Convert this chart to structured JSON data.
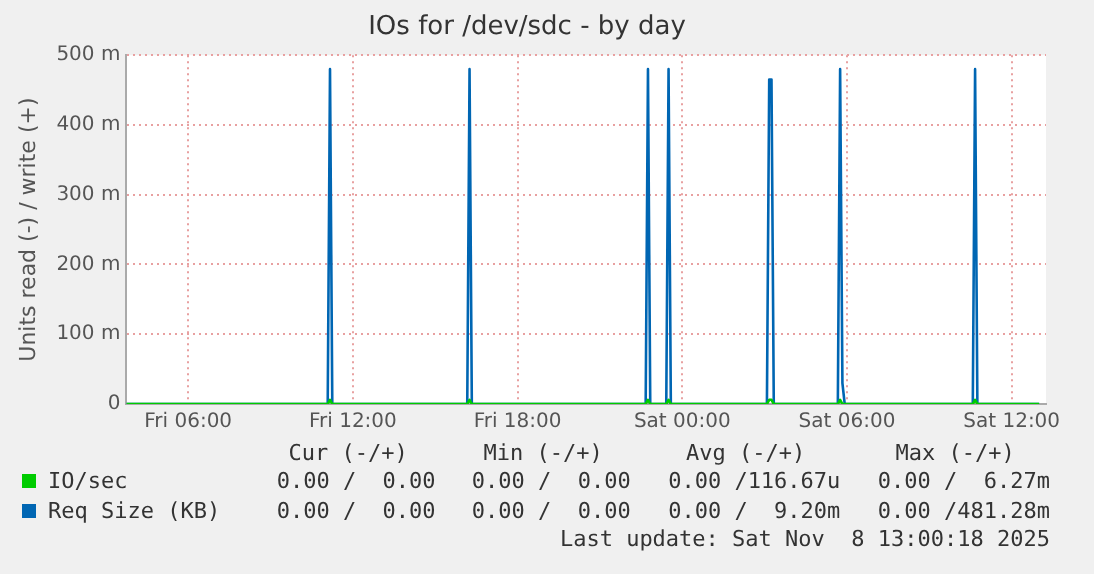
{
  "chart_data": {
    "type": "line",
    "title": "IOs for /dev/sdc - by day",
    "ylabel": "Units read (-) / write (+)",
    "xlim": [
      "2025-11-07T03:45",
      "2025-11-08T13:15"
    ],
    "xticks": [
      {
        "value": "2025-11-07T06:00",
        "label": "Fri 06:00"
      },
      {
        "value": "2025-11-07T12:00",
        "label": "Fri 12:00"
      },
      {
        "value": "2025-11-07T18:00",
        "label": "Fri 18:00"
      },
      {
        "value": "2025-11-08T00:00",
        "label": "Sat 00:00"
      },
      {
        "value": "2025-11-08T06:00",
        "label": "Sat 06:00"
      },
      {
        "value": "2025-11-08T12:00",
        "label": "Sat 12:00"
      }
    ],
    "ylim": [
      0,
      500
    ],
    "yticks": [
      0,
      {
        "value": 100,
        "label": "100 m"
      },
      {
        "value": 200,
        "label": "200 m"
      },
      {
        "value": 300,
        "label": "300 m"
      },
      {
        "value": 400,
        "label": "400 m"
      },
      {
        "value": 500,
        "label": "500 m"
      }
    ],
    "series": [
      {
        "name": "IO/sec",
        "color": "#00cc00",
        "x": [
          "2025-11-07T03:45",
          "2025-11-07T11:05",
          "2025-11-07T11:10",
          "2025-11-07T11:15",
          "2025-11-07T16:10",
          "2025-11-07T16:15",
          "2025-11-07T16:20",
          "2025-11-07T22:40",
          "2025-11-07T22:45",
          "2025-11-07T22:50",
          "2025-11-07T23:25",
          "2025-11-07T23:30",
          "2025-11-07T23:35",
          "2025-11-08T03:05",
          "2025-11-08T03:10",
          "2025-11-08T03:15",
          "2025-11-08T03:20",
          "2025-11-08T05:40",
          "2025-11-08T05:45",
          "2025-11-08T05:50",
          "2025-11-08T10:35",
          "2025-11-08T10:40",
          "2025-11-08T10:45",
          "2025-11-08T13:00"
        ],
        "values": [
          0,
          0,
          6,
          0,
          0,
          6,
          0,
          0,
          6,
          0,
          0,
          6,
          0,
          0,
          6,
          6,
          0,
          0,
          6,
          0,
          0,
          6,
          0,
          0
        ]
      },
      {
        "name": "Req Size (KB)",
        "color": "#0066b3",
        "x": [
          "2025-11-07T03:45",
          "2025-11-07T11:05",
          "2025-11-07T11:10",
          "2025-11-07T11:15",
          "2025-11-07T16:10",
          "2025-11-07T16:15",
          "2025-11-07T16:20",
          "2025-11-07T22:40",
          "2025-11-07T22:45",
          "2025-11-07T22:50",
          "2025-11-07T23:25",
          "2025-11-07T23:30",
          "2025-11-07T23:35",
          "2025-11-08T03:05",
          "2025-11-08T03:10",
          "2025-11-08T03:15",
          "2025-11-08T03:20",
          "2025-11-08T05:40",
          "2025-11-08T05:45",
          "2025-11-08T05:50",
          "2025-11-08T05:55",
          "2025-11-08T10:35",
          "2025-11-08T10:40",
          "2025-11-08T10:45",
          "2025-11-08T13:00"
        ],
        "values": [
          0,
          0,
          480,
          0,
          0,
          480,
          0,
          0,
          480,
          0,
          0,
          480,
          0,
          0,
          465,
          465,
          0,
          0,
          480,
          30,
          0,
          0,
          480,
          0,
          0
        ]
      }
    ],
    "grid": true,
    "legend": "bottom",
    "marker": "none",
    "line_style": "solid",
    "annotations": [
      "Cur (-/+)",
      "Min (-/+)",
      "Avg (-/+)",
      "Max (-/+)",
      "0.00 /  0.00",
      "0.00 /  0.00",
      "0.00 /116.67u",
      "0.00 /  6.27m",
      "0.00 /  0.00",
      "0.00 /  0.00",
      "0.00 /  9.20m",
      "0.00 /481.28m",
      "Last update: Sat Nov  8 13:00:18 2025"
    ]
  }
}
